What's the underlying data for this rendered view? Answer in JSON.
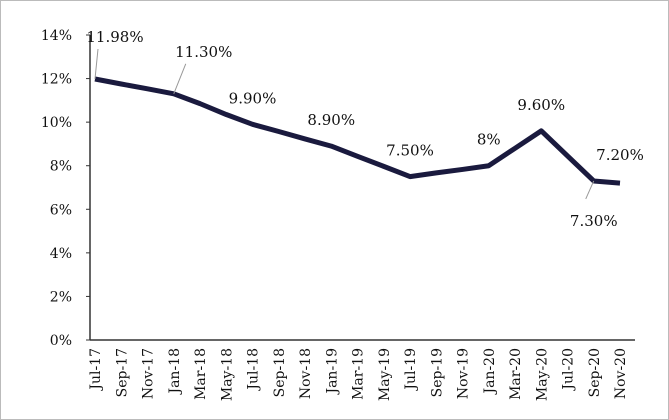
{
  "chart_data": {
    "type": "line",
    "categories": [
      "Jul-17",
      "Sep-17",
      "Nov-17",
      "Jan-18",
      "Mar-18",
      "May-18",
      "Jul-18",
      "Sep-18",
      "Nov-18",
      "Jan-19",
      "Mar-19",
      "May-19",
      "Jul-19",
      "Sep-19",
      "Nov-19",
      "Jan-20",
      "Mar-20",
      "May-20",
      "Jul-20",
      "Sep-20",
      "Nov-20"
    ],
    "series": [
      {
        "color": "#1a1a3e",
        "values": [
          11.98,
          11.75,
          11.53,
          11.3,
          10.85,
          10.35,
          9.9,
          9.57,
          9.23,
          8.9,
          8.43,
          7.97,
          7.5,
          7.67,
          7.83,
          8,
          8.8,
          9.6,
          8.45,
          7.3,
          7.2
        ],
        "value_labels": [
          "11.98%",
          null,
          null,
          "11.30%",
          null,
          null,
          "9.90%",
          null,
          null,
          "8.90%",
          null,
          null,
          "7.50%",
          null,
          null,
          "8%",
          null,
          "9.60%",
          null,
          "7.30%",
          "7.20%"
        ]
      }
    ],
    "ylim": [
      0,
      14
    ],
    "yticks": [
      {
        "value": 0,
        "label": "0%"
      },
      {
        "value": 2,
        "label": "2%"
      },
      {
        "value": 4,
        "label": "4%"
      },
      {
        "value": 6,
        "label": "6%"
      },
      {
        "value": 8,
        "label": "8%"
      },
      {
        "value": 10,
        "label": "10%"
      },
      {
        "value": 12,
        "label": "12%"
      },
      {
        "value": 14,
        "label": "14%"
      }
    ]
  }
}
